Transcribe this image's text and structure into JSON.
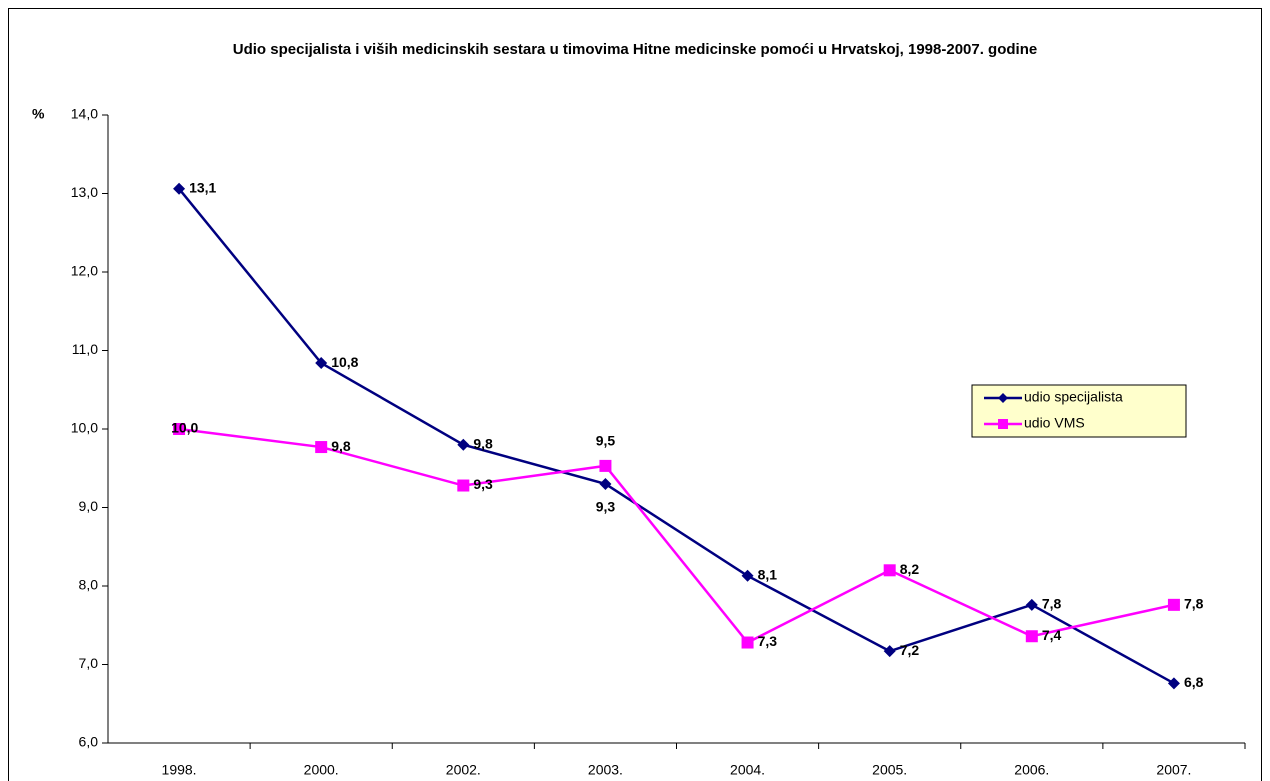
{
  "chart_data": {
    "type": "line",
    "title": "Udio specijalista i viših medicinskih sestara u timovima Hitne medicinske pomoći u Hrvatskoj, 1998-2007. godine",
    "ylabel": "%",
    "categories": [
      "1998.",
      "2000.",
      "2002.",
      "2003.",
      "2004.",
      "2005.",
      "2006.",
      "2007."
    ],
    "series": [
      {
        "name": "udio specijalista",
        "color": "#000080",
        "marker": "diamond",
        "values": [
          13.06,
          10.84,
          9.8,
          9.3,
          8.13,
          7.17,
          7.76,
          6.76
        ],
        "value_labels": [
          "13,1",
          "10,8",
          "9,8",
          "9,3",
          "8,1",
          "7,2",
          "7,8",
          "6,8"
        ]
      },
      {
        "name": "udio VMS",
        "color": "#ff00ff",
        "marker": "square",
        "values": [
          10.0,
          9.77,
          9.28,
          9.53,
          7.28,
          8.2,
          7.36,
          7.76
        ],
        "value_labels": [
          "10,0",
          "9,8",
          "9,3",
          "9,5",
          "7,3",
          "8,2",
          "7,4",
          "7,8"
        ]
      }
    ],
    "ylim": [
      6,
      14
    ],
    "yticks": [
      {
        "value": 6,
        "label": "6,0"
      },
      {
        "value": 7,
        "label": "7,0"
      },
      {
        "value": 8,
        "label": "8,0"
      },
      {
        "value": 9,
        "label": "9,0"
      },
      {
        "value": 10,
        "label": "10,0"
      },
      {
        "value": 11,
        "label": "11,0"
      },
      {
        "value": 12,
        "label": "12,0"
      },
      {
        "value": 13,
        "label": "13,0"
      },
      {
        "value": 14,
        "label": "14,0"
      }
    ],
    "legend": "right"
  }
}
